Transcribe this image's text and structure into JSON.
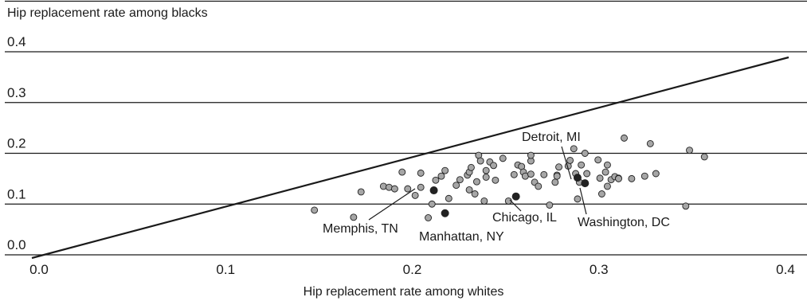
{
  "chart_data": {
    "type": "scatter",
    "title": "",
    "xlabel": "Hip replacement rate among whites",
    "ylabel": "Hip replacement rate among blacks",
    "xlim": [
      0.0,
      0.4
    ],
    "ylim": [
      0.0,
      0.4
    ],
    "x_ticks": [
      "0.0",
      "0.1",
      "0.2",
      "0.3",
      "0.4"
    ],
    "y_ticks": [
      "0.0",
      "0.1",
      "0.2",
      "0.3",
      "0.4"
    ],
    "grid": "horizontal",
    "reference_line": {
      "type": "equality",
      "from": [
        0.0,
        0.0
      ],
      "to": [
        0.4,
        0.39
      ]
    },
    "series": [
      {
        "marker": "gray-circle",
        "points": [
          [
            0.145,
            0.088
          ],
          [
            0.166,
            0.074
          ],
          [
            0.17,
            0.124
          ],
          [
            0.182,
            0.135
          ],
          [
            0.185,
            0.133
          ],
          [
            0.188,
            0.13
          ],
          [
            0.192,
            0.163
          ],
          [
            0.195,
            0.13
          ],
          [
            0.199,
            0.117
          ],
          [
            0.202,
            0.133
          ],
          [
            0.202,
            0.161
          ],
          [
            0.206,
            0.073
          ],
          [
            0.208,
            0.1
          ],
          [
            0.21,
            0.147
          ],
          [
            0.213,
            0.155
          ],
          [
            0.215,
            0.166
          ],
          [
            0.217,
            0.111
          ],
          [
            0.221,
            0.137
          ],
          [
            0.223,
            0.148
          ],
          [
            0.227,
            0.157
          ],
          [
            0.228,
            0.128
          ],
          [
            0.228,
            0.163
          ],
          [
            0.229,
            0.172
          ],
          [
            0.231,
            0.12
          ],
          [
            0.232,
            0.144
          ],
          [
            0.233,
            0.196
          ],
          [
            0.234,
            0.185
          ],
          [
            0.236,
            0.106
          ],
          [
            0.237,
            0.166
          ],
          [
            0.237,
            0.153
          ],
          [
            0.239,
            0.183
          ],
          [
            0.241,
            0.176
          ],
          [
            0.242,
            0.147
          ],
          [
            0.246,
            0.19
          ],
          [
            0.249,
            0.106
          ],
          [
            0.252,
            0.158
          ],
          [
            0.254,
            0.177
          ],
          [
            0.256,
            0.174
          ],
          [
            0.257,
            0.163
          ],
          [
            0.258,
            0.155
          ],
          [
            0.261,
            0.185
          ],
          [
            0.261,
            0.196
          ],
          [
            0.261,
            0.159
          ],
          [
            0.263,
            0.143
          ],
          [
            0.265,
            0.135
          ],
          [
            0.268,
            0.158
          ],
          [
            0.271,
            0.098
          ],
          [
            0.274,
            0.143
          ],
          [
            0.275,
            0.157
          ],
          [
            0.275,
            0.155
          ],
          [
            0.276,
            0.173
          ],
          [
            0.281,
            0.175
          ],
          [
            0.282,
            0.186
          ],
          [
            0.284,
            0.209
          ],
          [
            0.285,
            0.16
          ],
          [
            0.286,
            0.11
          ],
          [
            0.287,
            0.143
          ],
          [
            0.288,
            0.177
          ],
          [
            0.29,
            0.2
          ],
          [
            0.291,
            0.16
          ],
          [
            0.297,
            0.187
          ],
          [
            0.298,
            0.151
          ],
          [
            0.299,
            0.12
          ],
          [
            0.301,
            0.163
          ],
          [
            0.302,
            0.135
          ],
          [
            0.302,
            0.177
          ],
          [
            0.304,
            0.148
          ],
          [
            0.306,
            0.154
          ],
          [
            0.308,
            0.151
          ],
          [
            0.308,
            0.15
          ],
          [
            0.311,
            0.23
          ],
          [
            0.315,
            0.15
          ],
          [
            0.322,
            0.155
          ],
          [
            0.325,
            0.219
          ],
          [
            0.328,
            0.16
          ],
          [
            0.344,
            0.096
          ],
          [
            0.346,
            0.206
          ],
          [
            0.354,
            0.193
          ]
        ]
      },
      {
        "marker": "black-circle",
        "points": [
          [
            0.209,
            0.127
          ],
          [
            0.215,
            0.082
          ],
          [
            0.253,
            0.115
          ],
          [
            0.286,
            0.152
          ],
          [
            0.29,
            0.141
          ]
        ]
      }
    ],
    "annotations": [
      {
        "text": "Detroit, MI",
        "point": [
          0.286,
          0.152
        ]
      },
      {
        "text": "Memphis, TN",
        "point": [
          0.209,
          0.127
        ]
      },
      {
        "text": "Manhattan, NY",
        "point": [
          0.215,
          0.082
        ]
      },
      {
        "text": "Chicago, IL",
        "point": [
          0.253,
          0.115
        ]
      },
      {
        "text": "Washington, DC",
        "point": [
          0.29,
          0.141
        ]
      }
    ],
    "colors": {
      "gray_marker": "#a6a6a6",
      "black_marker": "#222222",
      "line": "#1a1a1a",
      "grid": "#1a1a1a"
    }
  }
}
